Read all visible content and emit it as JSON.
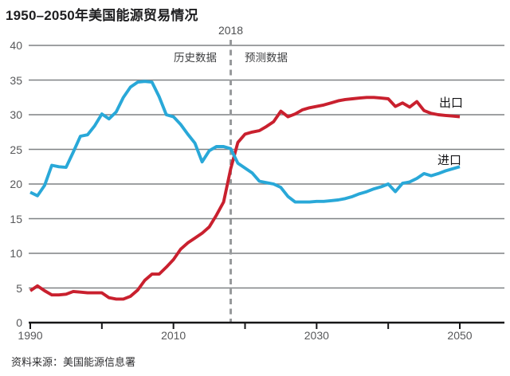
{
  "page": {
    "title": "1950–2050年美国能源贸易情况",
    "source": "资料来源：美国能源信息署"
  },
  "annotations": {
    "divider_year": "2018",
    "left_region": "历史数据",
    "right_region": "预测数据",
    "exports_label": "出口",
    "imports_label": "进口"
  },
  "colors": {
    "exports_line": "#c9202e",
    "imports_line": "#29a8d8",
    "grid": "#7f8184",
    "axis": "#161617",
    "divider": "#97999b",
    "tick_text": "#57585a"
  },
  "chart_data": {
    "type": "line",
    "title": "1950–2050年美国能源贸易情况",
    "xlabel": "",
    "ylabel": "",
    "xlim": [
      1990,
      2050
    ],
    "ylim": [
      0,
      40
    ],
    "x_ticks": [
      1990,
      2000,
      2010,
      2020,
      2030,
      2040,
      2050
    ],
    "x_tick_labels_shown": [
      "1990",
      "2010",
      "2030",
      "2050"
    ],
    "y_ticks": [
      0,
      5,
      10,
      15,
      20,
      25,
      30,
      35,
      40
    ],
    "grid": "horizontal-only",
    "legend_position": "inline-right-labels",
    "divider": {
      "x": 2018,
      "style": "dashed",
      "label": "2018"
    },
    "x": [
      1990,
      1991,
      1992,
      1993,
      1994,
      1995,
      1996,
      1997,
      1998,
      1999,
      2000,
      2001,
      2002,
      2003,
      2004,
      2005,
      2006,
      2007,
      2008,
      2009,
      2010,
      2011,
      2012,
      2013,
      2014,
      2015,
      2016,
      2017,
      2018,
      2019,
      2020,
      2021,
      2022,
      2023,
      2024,
      2025,
      2026,
      2027,
      2028,
      2029,
      2030,
      2031,
      2032,
      2033,
      2034,
      2035,
      2036,
      2037,
      2038,
      2039,
      2040,
      2041,
      2042,
      2043,
      2044,
      2045,
      2046,
      2047,
      2048,
      2049,
      2050
    ],
    "series": [
      {
        "name": "出口",
        "key": "exports",
        "color": "#c9202e",
        "values": [
          4.6,
          5.3,
          4.6,
          4.0,
          4.0,
          4.1,
          4.5,
          4.4,
          4.3,
          4.3,
          4.3,
          3.6,
          3.4,
          3.4,
          3.8,
          4.7,
          6.1,
          7.0,
          7.0,
          8.0,
          9.1,
          10.6,
          11.5,
          12.2,
          12.9,
          13.8,
          15.5,
          17.4,
          22.2,
          26.0,
          27.2,
          27.5,
          27.7,
          28.3,
          29.0,
          30.5,
          29.7,
          30.1,
          30.7,
          31.0,
          31.2,
          31.4,
          31.7,
          32.0,
          32.2,
          32.3,
          32.4,
          32.5,
          32.5,
          32.4,
          32.3,
          31.2,
          31.7,
          31.1,
          31.9,
          30.6,
          30.2,
          30.0,
          29.9,
          29.8,
          29.7
        ]
      },
      {
        "name": "进口",
        "key": "imports",
        "color": "#29a8d8",
        "values": [
          18.8,
          18.3,
          19.8,
          22.7,
          22.5,
          22.4,
          24.6,
          26.9,
          27.1,
          28.4,
          30.1,
          29.4,
          30.4,
          32.5,
          34.0,
          34.7,
          34.8,
          34.7,
          32.6,
          30.0,
          29.7,
          28.6,
          27.2,
          25.9,
          23.2,
          24.8,
          25.4,
          25.4,
          25.1,
          23.0,
          22.3,
          21.6,
          20.4,
          20.2,
          20.0,
          19.5,
          18.2,
          17.4,
          17.4,
          17.4,
          17.5,
          17.5,
          17.6,
          17.7,
          17.9,
          18.2,
          18.6,
          18.9,
          19.3,
          19.6,
          20.0,
          18.9,
          20.1,
          20.3,
          20.8,
          21.5,
          21.2,
          21.5,
          21.9,
          22.2,
          22.5
        ]
      }
    ]
  }
}
